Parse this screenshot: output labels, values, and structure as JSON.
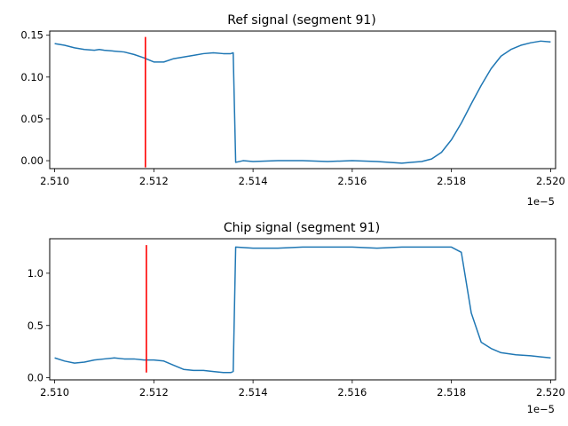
{
  "chart_data": [
    {
      "type": "line",
      "title": "Ref signal (segment 91)",
      "xlim": [
        2.5099e-05,
        2.5201e-05
      ],
      "ylim": [
        -0.0095,
        0.155
      ],
      "x_ticks": [
        2.51e-05,
        2.512e-05,
        2.514e-05,
        2.516e-05,
        2.518e-05,
        2.52e-05
      ],
      "x_tick_labels": [
        "2.510",
        "2.512",
        "2.514",
        "2.516",
        "2.518",
        "2.520"
      ],
      "x_offset_label": "1e−5",
      "y_ticks": [
        0.0,
        0.05,
        0.1,
        0.15
      ],
      "y_tick_labels": [
        "0.00",
        "0.05",
        "0.10",
        "0.15"
      ],
      "grid": false,
      "series": [
        {
          "color": "#1f77b4",
          "x": [
            2.51e-05,
            2.5102e-05,
            2.5104e-05,
            2.5106e-05,
            2.5108e-05,
            2.5109e-05,
            2.511e-05,
            2.5112e-05,
            2.5114e-05,
            2.5116e-05,
            2.5118e-05,
            2.512e-05,
            2.5122e-05,
            2.5124e-05,
            2.5126e-05,
            2.5128e-05,
            2.513e-05,
            2.5132e-05,
            2.5134e-05,
            2.51355e-05,
            2.5136e-05,
            2.51365e-05,
            2.5138e-05,
            2.514e-05,
            2.5145e-05,
            2.515e-05,
            2.5155e-05,
            2.516e-05,
            2.5165e-05,
            2.517e-05,
            2.5172e-05,
            2.5174e-05,
            2.5176e-05,
            2.5178e-05,
            2.518e-05,
            2.5182e-05,
            2.5184e-05,
            2.5186e-05,
            2.5188e-05,
            2.519e-05,
            2.5192e-05,
            2.5194e-05,
            2.5196e-05,
            2.5198e-05,
            2.52e-05
          ],
          "y": [
            0.14,
            0.138,
            0.135,
            0.133,
            0.132,
            0.133,
            0.132,
            0.131,
            0.13,
            0.127,
            0.123,
            0.118,
            0.118,
            0.122,
            0.124,
            0.126,
            0.128,
            0.129,
            0.128,
            0.128,
            0.129,
            -0.002,
            0.0,
            -0.001,
            0.0,
            0.0,
            -0.001,
            0.0,
            -0.001,
            -0.003,
            -0.002,
            -0.001,
            0.002,
            0.01,
            0.025,
            0.045,
            0.068,
            0.09,
            0.11,
            0.125,
            0.133,
            0.138,
            0.141,
            0.143,
            0.142
          ]
        }
      ],
      "markers": [
        {
          "x": 2.51183e-05,
          "y0": -0.008,
          "y1": 0.148,
          "color": "#ff0000"
        }
      ]
    },
    {
      "type": "line",
      "title": "Chip signal (segment 91)",
      "xlim": [
        2.5099e-05,
        2.5201e-05
      ],
      "ylim": [
        -0.02,
        1.33
      ],
      "x_ticks": [
        2.51e-05,
        2.512e-05,
        2.514e-05,
        2.516e-05,
        2.518e-05,
        2.52e-05
      ],
      "x_tick_labels": [
        "2.510",
        "2.512",
        "2.514",
        "2.516",
        "2.518",
        "2.520"
      ],
      "x_offset_label": "1e−5",
      "y_ticks": [
        0.0,
        0.5,
        1.0
      ],
      "y_tick_labels": [
        "0.0",
        "0.5",
        "1.0"
      ],
      "grid": false,
      "series": [
        {
          "color": "#1f77b4",
          "x": [
            2.51e-05,
            2.5102e-05,
            2.5104e-05,
            2.5106e-05,
            2.5108e-05,
            2.511e-05,
            2.5112e-05,
            2.5114e-05,
            2.5116e-05,
            2.5118e-05,
            2.512e-05,
            2.5122e-05,
            2.5124e-05,
            2.5126e-05,
            2.5128e-05,
            2.513e-05,
            2.5132e-05,
            2.5134e-05,
            2.51355e-05,
            2.5136e-05,
            2.51365e-05,
            2.514e-05,
            2.5145e-05,
            2.515e-05,
            2.5155e-05,
            2.516e-05,
            2.5165e-05,
            2.517e-05,
            2.5175e-05,
            2.5178e-05,
            2.518e-05,
            2.5182e-05,
            2.5184e-05,
            2.5186e-05,
            2.5188e-05,
            2.519e-05,
            2.5193e-05,
            2.5196e-05,
            2.5198e-05,
            2.52e-05
          ],
          "y": [
            0.19,
            0.16,
            0.14,
            0.15,
            0.17,
            0.18,
            0.19,
            0.18,
            0.18,
            0.17,
            0.17,
            0.16,
            0.12,
            0.08,
            0.07,
            0.07,
            0.06,
            0.05,
            0.05,
            0.06,
            1.25,
            1.24,
            1.24,
            1.25,
            1.25,
            1.25,
            1.24,
            1.25,
            1.25,
            1.25,
            1.25,
            1.2,
            0.62,
            0.34,
            0.28,
            0.24,
            0.22,
            0.21,
            0.2,
            0.19
          ]
        }
      ],
      "markers": [
        {
          "x": 2.51185e-05,
          "y0": 0.05,
          "y1": 1.27,
          "color": "#ff0000"
        }
      ]
    }
  ]
}
